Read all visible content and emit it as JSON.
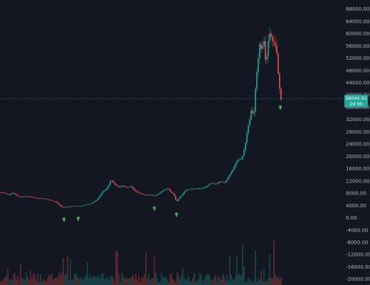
{
  "chart_data": {
    "type": "candlestick",
    "yaxis": {
      "ticks": [
        "68000.00",
        "64000.00",
        "60000.00",
        "56000.00",
        "52000.00",
        "48000.00",
        "44000.00",
        "40000.00",
        "36000.00",
        "32000.00",
        "28000.00",
        "24000.00",
        "20000.00",
        "16000.00",
        "12000.00",
        "8000.00",
        "4000.00",
        "0.00",
        "-4000.00",
        "-8000.00",
        "-12000.00",
        "-16000.00",
        "-20000.00"
      ],
      "tick_values": [
        68000,
        64000,
        60000,
        56000,
        52000,
        48000,
        44000,
        40000,
        36000,
        32000,
        28000,
        24000,
        20000,
        16000,
        12000,
        8000,
        4000,
        0,
        -4000,
        -8000,
        -12000,
        -16000,
        -20000
      ],
      "range": [
        -21000,
        70000
      ],
      "position": "right"
    },
    "current_price": {
      "value": 38040.91,
      "label": "38040.91",
      "countdown": "2d 9h",
      "color": "#26a69a"
    },
    "price_line": 38800,
    "price_series": [
      [
        0,
        8300
      ],
      [
        6,
        8000
      ],
      [
        12,
        7400
      ],
      [
        18,
        8100
      ],
      [
        24,
        7200
      ],
      [
        30,
        6600
      ],
      [
        36,
        7000
      ],
      [
        42,
        6800
      ],
      [
        48,
        6500
      ],
      [
        54,
        6200
      ],
      [
        60,
        6300
      ],
      [
        66,
        6000
      ],
      [
        72,
        5600
      ],
      [
        78,
        5200
      ],
      [
        84,
        4000
      ],
      [
        88,
        3300
      ],
      [
        92,
        3600
      ],
      [
        96,
        3400
      ],
      [
        100,
        3800
      ],
      [
        104,
        3700
      ],
      [
        108,
        3900
      ],
      [
        112,
        3600
      ],
      [
        116,
        4000
      ],
      [
        120,
        4200
      ],
      [
        124,
        4300
      ],
      [
        128,
        4600
      ],
      [
        132,
        5200
      ],
      [
        136,
        5800
      ],
      [
        140,
        7000
      ],
      [
        144,
        8500
      ],
      [
        148,
        9000
      ],
      [
        152,
        10200
      ],
      [
        156,
        12400
      ],
      [
        160,
        11200
      ],
      [
        164,
        10400
      ],
      [
        168,
        9800
      ],
      [
        172,
        10600
      ],
      [
        176,
        10000
      ],
      [
        180,
        9800
      ],
      [
        184,
        10300
      ],
      [
        188,
        9200
      ],
      [
        192,
        8400
      ],
      [
        196,
        8000
      ],
      [
        200,
        7600
      ],
      [
        204,
        7400
      ],
      [
        208,
        7200
      ],
      [
        212,
        7500
      ],
      [
        216,
        7000
      ],
      [
        220,
        7400
      ],
      [
        224,
        8000
      ],
      [
        228,
        8700
      ],
      [
        232,
        9200
      ],
      [
        236,
        9600
      ],
      [
        240,
        8300
      ],
      [
        244,
        7800
      ],
      [
        248,
        5100
      ],
      [
        252,
        6600
      ],
      [
        256,
        7400
      ],
      [
        260,
        8800
      ],
      [
        264,
        9100
      ],
      [
        268,
        9400
      ],
      [
        272,
        9300
      ],
      [
        276,
        9400
      ],
      [
        280,
        9600
      ],
      [
        284,
        9600
      ],
      [
        288,
        9800
      ],
      [
        292,
        10500
      ],
      [
        296,
        11200
      ],
      [
        300,
        11100
      ],
      [
        304,
        10900
      ],
      [
        308,
        11700
      ],
      [
        312,
        11600
      ],
      [
        316,
        11400
      ],
      [
        320,
        12900
      ],
      [
        324,
        14500
      ],
      [
        328,
        16000
      ],
      [
        332,
        18200
      ],
      [
        336,
        19000
      ],
      [
        340,
        19200
      ],
      [
        344,
        23000
      ],
      [
        348,
        29000
      ],
      [
        352,
        33000
      ],
      [
        354,
        37000
      ],
      [
        356,
        31000
      ],
      [
        358,
        38000
      ],
      [
        360,
        46000
      ],
      [
        362,
        49000
      ],
      [
        364,
        55000
      ],
      [
        366,
        58000
      ],
      [
        368,
        52000
      ],
      [
        370,
        60000
      ],
      [
        372,
        55000
      ],
      [
        374,
        48000
      ],
      [
        376,
        57000
      ],
      [
        378,
        58000
      ],
      [
        380,
        62000
      ],
      [
        382,
        56000
      ],
      [
        384,
        59000
      ],
      [
        386,
        55000
      ],
      [
        388,
        57000
      ],
      [
        390,
        50000
      ],
      [
        392,
        44000
      ],
      [
        394,
        40000
      ],
      [
        396,
        37000
      ]
    ],
    "volume_ticks": [
      "-8000.00",
      "-12000.00",
      "-16000.00",
      "-20000.00"
    ],
    "green_color": "#26a69a",
    "red_color": "#ef5350",
    "arrow_color": "#4caf50",
    "arrows_x": [
      90,
      110,
      217,
      248,
      394
    ]
  }
}
